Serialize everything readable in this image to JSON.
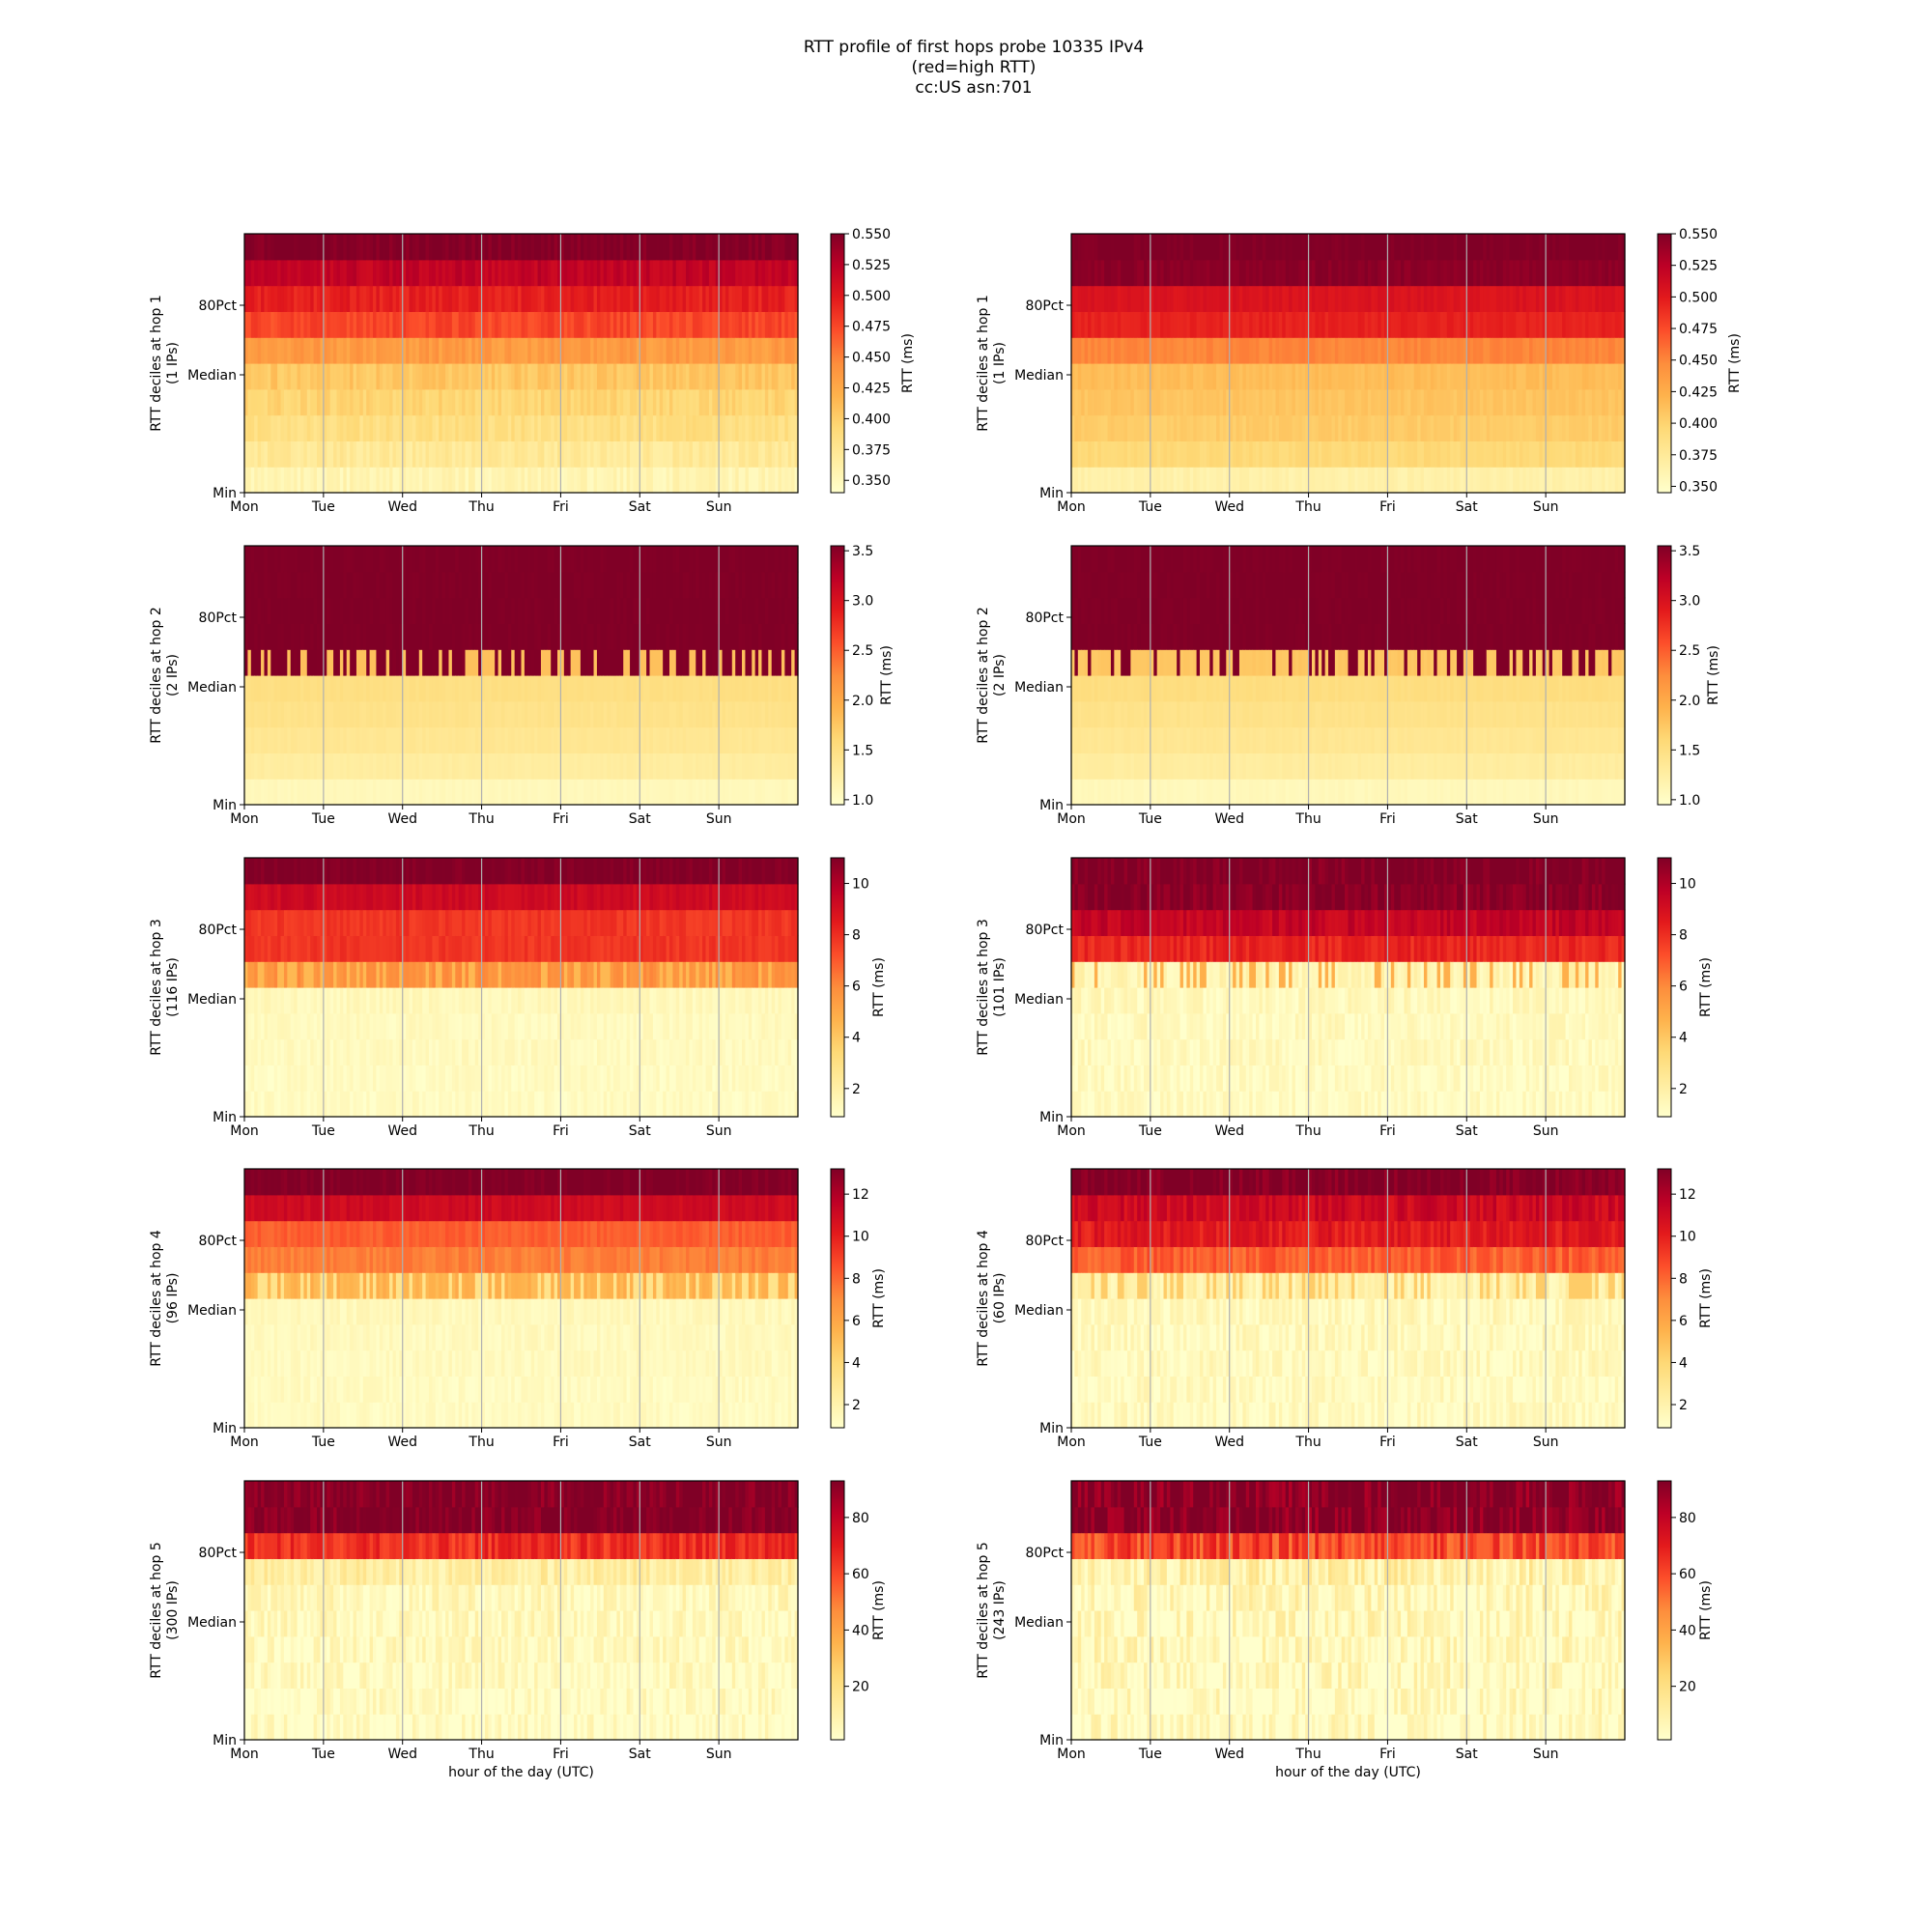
{
  "figure": {
    "title_lines": [
      "RTT profile of first hops probe 10335 IPv4",
      "(red=high RTT)",
      "cc:US asn:701"
    ],
    "colors": {
      "colormap": "YlOrRd",
      "stops": [
        "#ffffcc",
        "#ffeda0",
        "#fed976",
        "#feb24c",
        "#fd8d3c",
        "#fc4e2a",
        "#e31a1c",
        "#bd0026",
        "#800026"
      ],
      "day_grid": "#b0b0b0",
      "frame": "#000000"
    }
  },
  "chart_data": [
    {
      "type": "heatmap",
      "panel": "left",
      "hop": 1,
      "ylabel_lines": [
        "RTT deciles at hop 1",
        "(1 IPs)"
      ],
      "xticks": [
        "Mon",
        "Tue",
        "Wed",
        "Thu",
        "Fri",
        "Sat",
        "Sun"
      ],
      "yticks": [
        "Min",
        "Median",
        "80Pct"
      ],
      "xlabel": "",
      "grid": "vertical day lines",
      "colorbar": {
        "label": "RTT (ms)",
        "range": [
          0.34,
          0.55
        ],
        "ticks": [
          "0.350",
          "0.375",
          "0.400",
          "0.425",
          "0.450",
          "0.475",
          "0.500",
          "0.525",
          "0.550"
        ]
      },
      "decile_rtt": [
        0.355,
        0.372,
        0.385,
        0.395,
        0.405,
        0.435,
        0.475,
        0.495,
        0.52,
        0.55
      ],
      "variation": 0.08,
      "median_spikes": {
        "decile": -1,
        "to": 0,
        "prob": 0
      }
    },
    {
      "type": "heatmap",
      "panel": "right",
      "hop": 1,
      "ylabel_lines": [
        "RTT deciles at hop 1",
        "(1 IPs)"
      ],
      "xticks": [
        "Mon",
        "Tue",
        "Wed",
        "Thu",
        "Fri",
        "Sat",
        "Sun"
      ],
      "yticks": [
        "Min",
        "Median",
        "80Pct"
      ],
      "xlabel": "",
      "grid": "vertical day lines",
      "colorbar": {
        "label": "RTT (ms)",
        "range": [
          0.345,
          0.55
        ],
        "ticks": [
          "0.350",
          "0.375",
          "0.400",
          "0.425",
          "0.450",
          "0.475",
          "0.500",
          "0.525",
          "0.550"
        ]
      },
      "decile_rtt": [
        0.365,
        0.395,
        0.405,
        0.41,
        0.415,
        0.45,
        0.495,
        0.505,
        0.545,
        0.55
      ],
      "variation": 0.04,
      "median_spikes": {
        "decile": -1,
        "to": 0,
        "prob": 0
      }
    },
    {
      "type": "heatmap",
      "panel": "left",
      "hop": 2,
      "ylabel_lines": [
        "RTT deciles at hop 2",
        "(2 IPs)"
      ],
      "xticks": [
        "Mon",
        "Tue",
        "Wed",
        "Thu",
        "Fri",
        "Sat",
        "Sun"
      ],
      "yticks": [
        "Min",
        "Median",
        "80Pct"
      ],
      "xlabel": "",
      "grid": "vertical day lines",
      "colorbar": {
        "label": "RTT (ms)",
        "range": [
          0.95,
          3.55
        ],
        "ticks": [
          "1.0",
          "1.5",
          "2.0",
          "2.5",
          "3.0",
          "3.5"
        ]
      },
      "decile_rtt": [
        1.08,
        1.28,
        1.38,
        1.45,
        1.5,
        3.55,
        3.55,
        3.55,
        3.55,
        3.55
      ],
      "variation": 0.02,
      "median_spikes": {
        "decile": 5,
        "to": 1.8,
        "prob": 0.35
      }
    },
    {
      "type": "heatmap",
      "panel": "right",
      "hop": 2,
      "ylabel_lines": [
        "RTT deciles at hop 2",
        "(2 IPs)"
      ],
      "xticks": [
        "Mon",
        "Tue",
        "Wed",
        "Thu",
        "Fri",
        "Sat",
        "Sun"
      ],
      "yticks": [
        "Min",
        "Median",
        "80Pct"
      ],
      "xlabel": "",
      "grid": "vertical day lines",
      "colorbar": {
        "label": "RTT (ms)",
        "range": [
          0.95,
          3.55
        ],
        "ticks": [
          "1.0",
          "1.5",
          "2.0",
          "2.5",
          "3.0",
          "3.5"
        ]
      },
      "decile_rtt": [
        1.08,
        1.28,
        1.38,
        1.45,
        1.52,
        1.75,
        3.55,
        3.55,
        3.55,
        3.55
      ],
      "variation": 0.02,
      "median_spikes": {
        "decile": 5,
        "to": 3.55,
        "prob": 0.3
      }
    },
    {
      "type": "heatmap",
      "panel": "left",
      "hop": 3,
      "ylabel_lines": [
        "RTT deciles at hop 3",
        "(116 IPs)"
      ],
      "xticks": [
        "Mon",
        "Tue",
        "Wed",
        "Thu",
        "Fri",
        "Sat",
        "Sun"
      ],
      "yticks": [
        "Min",
        "Median",
        "80Pct"
      ],
      "xlabel": "",
      "grid": "vertical day lines",
      "colorbar": {
        "label": "RTT (ms)",
        "range": [
          0.9,
          11.0
        ],
        "ticks": [
          "2",
          "4",
          "6",
          "8",
          "10"
        ]
      },
      "decile_rtt": [
        1.2,
        1.2,
        1.3,
        1.3,
        1.4,
        5.8,
        7.8,
        7.8,
        9.2,
        11.0
      ],
      "variation": 0.06,
      "median_spikes": {
        "decile": 5,
        "to": 4.5,
        "prob": 0.35
      }
    },
    {
      "type": "heatmap",
      "panel": "right",
      "hop": 3,
      "ylabel_lines": [
        "RTT deciles at hop 3",
        "(101 IPs)"
      ],
      "xticks": [
        "Mon",
        "Tue",
        "Wed",
        "Thu",
        "Fri",
        "Sat",
        "Sun"
      ],
      "yticks": [
        "Min",
        "Median",
        "80Pct"
      ],
      "xlabel": "",
      "grid": "vertical day lines",
      "colorbar": {
        "label": "RTT (ms)",
        "range": [
          0.9,
          11.0
        ],
        "ticks": [
          "2",
          "4",
          "6",
          "8",
          "10"
        ]
      },
      "decile_rtt": [
        1.2,
        1.2,
        1.3,
        1.3,
        1.4,
        1.6,
        8.2,
        9.5,
        10.8,
        11.0
      ],
      "variation": 0.1,
      "median_spikes": {
        "decile": 5,
        "to": 4.8,
        "prob": 0.2
      }
    },
    {
      "type": "heatmap",
      "panel": "left",
      "hop": 4,
      "ylabel_lines": [
        "RTT deciles at hop 4",
        "(96 IPs)"
      ],
      "xticks": [
        "Mon",
        "Tue",
        "Wed",
        "Thu",
        "Fri",
        "Sat",
        "Sun"
      ],
      "yticks": [
        "Min",
        "Median",
        "80Pct"
      ],
      "xlabel": "",
      "grid": "vertical day lines",
      "colorbar": {
        "label": "RTT (ms)",
        "range": [
          0.9,
          13.2
        ],
        "ticks": [
          "2",
          "4",
          "6",
          "8",
          "10",
          "12"
        ]
      },
      "decile_rtt": [
        1.3,
        1.3,
        1.4,
        1.4,
        1.5,
        5.5,
        7.4,
        8.2,
        11.0,
        13.2
      ],
      "variation": 0.06,
      "median_spikes": {
        "decile": 5,
        "to": 3.2,
        "prob": 0.35
      }
    },
    {
      "type": "heatmap",
      "panel": "right",
      "hop": 4,
      "ylabel_lines": [
        "RTT deciles at hop 4",
        "(60 IPs)"
      ],
      "xticks": [
        "Mon",
        "Tue",
        "Wed",
        "Thu",
        "Fri",
        "Sat",
        "Sun"
      ],
      "yticks": [
        "Min",
        "Median",
        "80Pct"
      ],
      "xlabel": "",
      "grid": "vertical day lines",
      "colorbar": {
        "label": "RTT (ms)",
        "range": [
          0.9,
          13.2
        ],
        "ticks": [
          "2",
          "4",
          "6",
          "8",
          "10",
          "12"
        ]
      },
      "decile_rtt": [
        1.3,
        1.3,
        1.4,
        1.4,
        1.5,
        2.0,
        8.2,
        10.2,
        11.0,
        13.2
      ],
      "variation": 0.12,
      "median_spikes": {
        "decile": 5,
        "to": 4.5,
        "prob": 0.3
      }
    },
    {
      "type": "heatmap",
      "panel": "left",
      "hop": 5,
      "ylabel_lines": [
        "RTT deciles at hop 5",
        "(300 IPs)"
      ],
      "xticks": [
        "Mon",
        "Tue",
        "Wed",
        "Thu",
        "Fri",
        "Sat",
        "Sun"
      ],
      "yticks": [
        "Min",
        "Median",
        "80Pct"
      ],
      "xlabel": "hour of the day (UTC)",
      "grid": "vertical day lines",
      "colorbar": {
        "label": "RTT (ms)",
        "range": [
          1.0,
          93.0
        ],
        "ticks": [
          "20",
          "40",
          "60",
          "80"
        ]
      },
      "decile_rtt": [
        3.0,
        3.5,
        4.0,
        4.5,
        5.0,
        6.0,
        12.0,
        65.0,
        93.0,
        93.0
      ],
      "variation": 0.15,
      "median_spikes": {
        "decile": -1,
        "to": 0,
        "prob": 0
      }
    },
    {
      "type": "heatmap",
      "panel": "right",
      "hop": 5,
      "ylabel_lines": [
        "RTT deciles at hop 5",
        "(243 IPs)"
      ],
      "xticks": [
        "Mon",
        "Tue",
        "Wed",
        "Thu",
        "Fri",
        "Sat",
        "Sun"
      ],
      "yticks": [
        "Min",
        "Median",
        "80Pct"
      ],
      "xlabel": "hour of the day (UTC)",
      "grid": "vertical day lines",
      "colorbar": {
        "label": "RTT (ms)",
        "range": [
          1.0,
          93.0
        ],
        "ticks": [
          "20",
          "40",
          "60",
          "80"
        ]
      },
      "decile_rtt": [
        3.0,
        3.5,
        4.0,
        4.5,
        5.0,
        6.0,
        10.0,
        60.0,
        93.0,
        93.0
      ],
      "variation": 0.22,
      "median_spikes": {
        "decile": -1,
        "to": 0,
        "prob": 0
      }
    }
  ]
}
